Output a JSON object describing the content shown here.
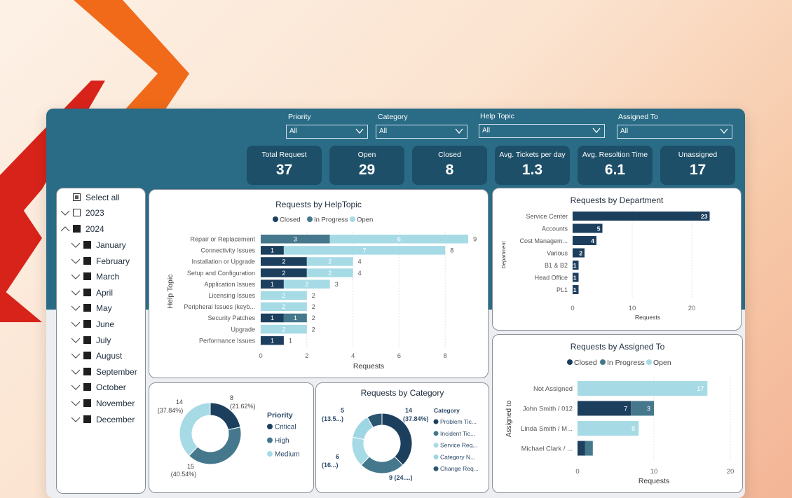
{
  "colors": {
    "closed": "#1d3f5e",
    "in_progress": "#45788c",
    "open": "#a6dbe6",
    "header": "#2a6b86",
    "kpi": "#1d4f68"
  },
  "filters": [
    {
      "label": "Priority",
      "value": "All"
    },
    {
      "label": "Category",
      "value": "All"
    },
    {
      "label": "Help Topic",
      "value": "All"
    },
    {
      "label": "Assigned To",
      "value": "All"
    }
  ],
  "kpis": [
    {
      "label": "Total Request",
      "value": "37"
    },
    {
      "label": "Open",
      "value": "29"
    },
    {
      "label": "Closed",
      "value": "8"
    },
    {
      "label": "Avg. Tickets per day",
      "value": "1.3"
    },
    {
      "label": "Avg. Resoltion Time",
      "value": "6.1"
    },
    {
      "label": "Unassigned",
      "value": "17"
    }
  ],
  "date_slicer": {
    "select_all": "Select all",
    "years": [
      "2023",
      "2024"
    ],
    "months": [
      "January",
      "February",
      "March",
      "April",
      "May",
      "June",
      "July",
      "August",
      "September",
      "October",
      "November",
      "December"
    ]
  },
  "helptopic_chart": {
    "title": "Requests by HelpTopic",
    "legend": [
      "Closed",
      "In Progress",
      "Open"
    ],
    "xlabel": "Requests",
    "ylabel": "Help Topic",
    "xticks": [
      "0",
      "2",
      "4",
      "6",
      "8"
    ],
    "xmax": 9,
    "rows": [
      {
        "label": "Repair or Replacement",
        "closed": 0,
        "in_progress": 3,
        "open": 6,
        "total": 9
      },
      {
        "label": "Connectivity Issues",
        "closed": 1,
        "in_progress": 0,
        "open": 7,
        "total": 8
      },
      {
        "label": "Installation or Upgrade",
        "closed": 2,
        "in_progress": 0,
        "open": 2,
        "total": 4
      },
      {
        "label": "Setup and Configuration",
        "closed": 2,
        "in_progress": 0,
        "open": 2,
        "total": 4
      },
      {
        "label": "Application Issues",
        "closed": 1,
        "in_progress": 0,
        "open": 2,
        "total": 3
      },
      {
        "label": "Licensing Issues",
        "closed": 0,
        "in_progress": 0,
        "open": 2,
        "total": 2
      },
      {
        "label": "Peripheral Issues (keyb...",
        "closed": 0,
        "in_progress": 0,
        "open": 2,
        "total": 2
      },
      {
        "label": "Security Patches",
        "closed": 1,
        "in_progress": 1,
        "open": 0,
        "total": 2
      },
      {
        "label": "Upgrade",
        "closed": 0,
        "in_progress": 0,
        "open": 2,
        "total": 2
      },
      {
        "label": "Performance Issues",
        "closed": 1,
        "in_progress": 0,
        "open": 0,
        "total": 1
      }
    ]
  },
  "department_chart": {
    "title": "Requests by Department",
    "xlabel": "Requests",
    "ylabel": "Department",
    "xticks": [
      "0",
      "10",
      "20"
    ],
    "xmax": 25,
    "rows": [
      {
        "label": "Service Center",
        "value": 23
      },
      {
        "label": "Accounts",
        "value": 5
      },
      {
        "label": "Cost Managem...",
        "value": 4
      },
      {
        "label": "Various",
        "value": 2
      },
      {
        "label": "B1 & B2",
        "value": 1
      },
      {
        "label": "Head Office",
        "value": 1
      },
      {
        "label": "PL1",
        "value": 1
      }
    ]
  },
  "assigned_chart": {
    "title": "Requests by Assigned To",
    "legend": [
      "Closed",
      "In Progress",
      "Open"
    ],
    "xlabel": "Requests",
    "ylabel": "Assigned to",
    "xticks": [
      "0",
      "10",
      "20"
    ],
    "xmax": 20,
    "rows": [
      {
        "label": "Not Assigned",
        "closed": 0,
        "in_progress": 0,
        "open": 17
      },
      {
        "label": "John Smith / 012",
        "closed": 7,
        "in_progress": 3,
        "open": 0
      },
      {
        "label": "Linda Smith / M...",
        "closed": 0,
        "in_progress": 0,
        "open": 8
      },
      {
        "label": "Michael Clark / ...",
        "closed": 1,
        "in_progress": 1,
        "open": 0
      }
    ]
  },
  "priority_chart": {
    "legend_title": "Priority",
    "legend": [
      "Critical",
      "High",
      "Medium"
    ],
    "slices": [
      {
        "name": "Critical",
        "value": 8,
        "label_value": "8",
        "label_pct": "(21.62%)"
      },
      {
        "name": "High",
        "value": 15,
        "label_value": "15",
        "label_pct": "(40.54%)"
      },
      {
        "name": "Medium",
        "value": 14,
        "label_value": "14",
        "label_pct": "(37.84%)"
      }
    ]
  },
  "category_chart": {
    "title": "Requests by Category",
    "legend_title": "Category",
    "legend": [
      "Problem Tic...",
      "Incident Tic...",
      "Service Req...",
      "Category N...",
      "Change Req..."
    ],
    "slices": [
      {
        "name": "Problem Tic...",
        "value": 14,
        "label_value": "14",
        "label_pct": "(37.84%)"
      },
      {
        "name": "Incident Tic...",
        "value": 9,
        "label_value": "9 (24....)",
        "label_pct": ""
      },
      {
        "name": "Service Req...",
        "value": 6,
        "label_value": "6",
        "label_pct": "(16...)"
      },
      {
        "name": "Category N...",
        "value": 5,
        "label_value": "5",
        "label_pct": "(13.5...)"
      },
      {
        "name": "Change Req...",
        "value": 3,
        "label_value": "",
        "label_pct": ""
      }
    ]
  },
  "chart_data": [
    {
      "type": "bar",
      "title": "Requests by HelpTopic",
      "orientation": "horizontal-stacked",
      "categories": [
        "Repair or Replacement",
        "Connectivity Issues",
        "Installation or Upgrade",
        "Setup and Configuration",
        "Application Issues",
        "Licensing Issues",
        "Peripheral Issues (keyb...",
        "Security Patches",
        "Upgrade",
        "Performance Issues"
      ],
      "series": [
        {
          "name": "Closed",
          "values": [
            0,
            1,
            2,
            2,
            1,
            0,
            0,
            1,
            0,
            1
          ]
        },
        {
          "name": "In Progress",
          "values": [
            3,
            0,
            0,
            0,
            0,
            0,
            0,
            1,
            0,
            0
          ]
        },
        {
          "name": "Open",
          "values": [
            6,
            7,
            2,
            2,
            2,
            2,
            2,
            0,
            2,
            0
          ]
        }
      ],
      "xlabel": "Requests",
      "ylabel": "Help Topic",
      "xlim": [
        0,
        9
      ]
    },
    {
      "type": "bar",
      "title": "Requests by Department",
      "orientation": "horizontal",
      "categories": [
        "Service Center",
        "Accounts",
        "Cost Managem...",
        "Various",
        "B1 & B2",
        "Head Office",
        "PL1"
      ],
      "values": [
        23,
        5,
        4,
        2,
        1,
        1,
        1
      ],
      "xlabel": "Requests",
      "ylabel": "Department",
      "xlim": [
        0,
        25
      ]
    },
    {
      "type": "bar",
      "title": "Requests by Assigned To",
      "orientation": "horizontal-stacked",
      "categories": [
        "Not Assigned",
        "John Smith / 012",
        "Linda Smith / M...",
        "Michael Clark / ..."
      ],
      "series": [
        {
          "name": "Closed",
          "values": [
            0,
            7,
            0,
            1
          ]
        },
        {
          "name": "In Progress",
          "values": [
            0,
            3,
            0,
            1
          ]
        },
        {
          "name": "Open",
          "values": [
            17,
            0,
            8,
            0
          ]
        }
      ],
      "xlabel": "Requests",
      "ylabel": "Assigned to",
      "xlim": [
        0,
        20
      ]
    },
    {
      "type": "pie",
      "title": "",
      "categories": [
        "Critical",
        "High",
        "Medium"
      ],
      "values": [
        8,
        15,
        14
      ]
    },
    {
      "type": "pie",
      "title": "Requests by Category",
      "categories": [
        "Problem Tic...",
        "Incident Tic...",
        "Service Req...",
        "Category N...",
        "Change Req..."
      ],
      "values": [
        14,
        9,
        6,
        5,
        3
      ]
    }
  ]
}
